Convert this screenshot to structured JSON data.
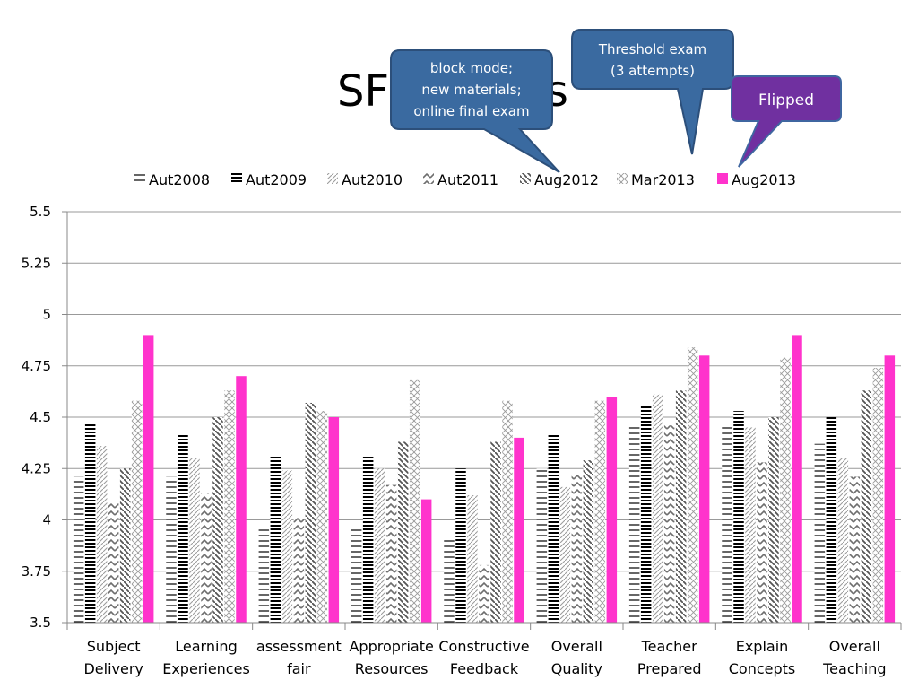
{
  "title": "SF",
  "title_tail": "ts",
  "callouts": [
    {
      "lines": [
        "block mode;",
        "new materials;",
        "online final exam"
      ],
      "color": "#3a6aa0"
    },
    {
      "lines": [
        "Threshold exam",
        "(3 attempts)"
      ],
      "color": "#3a6aa0"
    },
    {
      "lines": [
        "Flipped"
      ],
      "color": "#7030a0"
    }
  ],
  "chart_data": {
    "type": "bar",
    "ylim": [
      3.5,
      5.5
    ],
    "yticks": [
      "3.5",
      "3.75",
      "4",
      "4.25",
      "4.5",
      "4.75",
      "5",
      "5.25",
      "5.5"
    ],
    "grid": true,
    "legend_position": "top",
    "categories": [
      [
        "Subject",
        "Delivery"
      ],
      [
        "Learning",
        "Experiences"
      ],
      [
        "assessment",
        "fair"
      ],
      [
        "Appropriate",
        "Resources"
      ],
      [
        "Constructive",
        "Feedback"
      ],
      [
        "Overall",
        "Quality"
      ],
      [
        "Teacher",
        "Prepared"
      ],
      [
        "Explain",
        "Concepts"
      ],
      [
        "Overall",
        "Teaching"
      ]
    ],
    "series": [
      {
        "name": "Aut2008",
        "pattern": "hlines-light",
        "values": [
          4.21,
          4.21,
          3.96,
          3.96,
          3.91,
          4.25,
          4.47,
          4.47,
          4.37
        ]
      },
      {
        "name": "Aut2009",
        "pattern": "hlines-dark",
        "values": [
          4.47,
          4.42,
          4.31,
          4.31,
          4.25,
          4.42,
          4.56,
          4.53,
          4.5
        ]
      },
      {
        "name": "Aut2010",
        "pattern": "diag-light",
        "values": [
          4.36,
          4.3,
          4.24,
          4.25,
          4.12,
          4.16,
          4.61,
          4.45,
          4.3
        ]
      },
      {
        "name": "Aut2011",
        "pattern": "zigzag",
        "values": [
          4.08,
          4.13,
          4.01,
          4.17,
          3.78,
          4.22,
          4.46,
          4.28,
          4.21
        ]
      },
      {
        "name": "Aug2012",
        "pattern": "diag-dark",
        "values": [
          4.25,
          4.5,
          4.57,
          4.38,
          4.38,
          4.29,
          4.63,
          4.5,
          4.63
        ]
      },
      {
        "name": "Mar2013",
        "pattern": "cross",
        "values": [
          4.58,
          4.63,
          4.53,
          4.68,
          4.58,
          4.58,
          4.84,
          4.79,
          4.74
        ]
      },
      {
        "name": "Aug2013",
        "pattern": "solid",
        "values": [
          4.9,
          4.7,
          4.5,
          4.1,
          4.4,
          4.6,
          4.8,
          4.9,
          4.8
        ]
      }
    ],
    "colors": {
      "Aug2013": "#ff33cc",
      "grid": "#999999"
    }
  }
}
